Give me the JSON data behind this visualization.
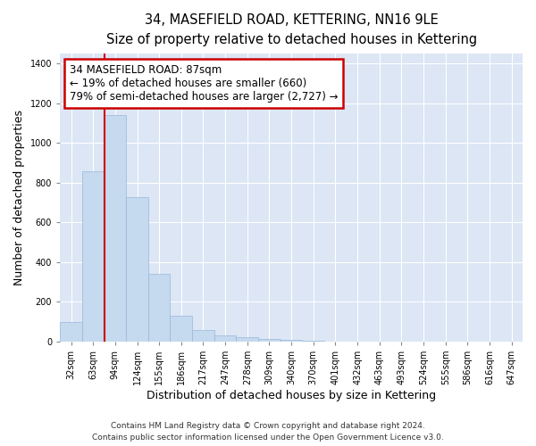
{
  "title_line1": "34, MASEFIELD ROAD, KETTERING, NN16 9LE",
  "title_line2": "Size of property relative to detached houses in Kettering",
  "xlabel": "Distribution of detached houses by size in Kettering",
  "ylabel": "Number of detached properties",
  "categories": [
    "32sqm",
    "63sqm",
    "94sqm",
    "124sqm",
    "155sqm",
    "186sqm",
    "217sqm",
    "247sqm",
    "278sqm",
    "309sqm",
    "340sqm",
    "370sqm",
    "401sqm",
    "432sqm",
    "463sqm",
    "493sqm",
    "524sqm",
    "555sqm",
    "586sqm",
    "616sqm",
    "647sqm"
  ],
  "values": [
    100,
    860,
    1140,
    730,
    340,
    130,
    60,
    30,
    20,
    13,
    8,
    5,
    0,
    0,
    0,
    0,
    0,
    0,
    0,
    0,
    0
  ],
  "bar_color": "#c5d9ef",
  "bar_edge_color": "#9ab8d8",
  "background_color": "#dce6f5",
  "grid_color": "#ffffff",
  "property_line_x": 2.0,
  "annotation_text_line1": "34 MASEFIELD ROAD: 87sqm",
  "annotation_text_line2": "← 19% of detached houses are smaller (660)",
  "annotation_text_line3": "79% of semi-detached houses are larger (2,727) →",
  "annotation_box_facecolor": "#ffffff",
  "annotation_box_edgecolor": "#cc0000",
  "red_line_color": "#cc0000",
  "ylim": [
    0,
    1450
  ],
  "yticks": [
    0,
    200,
    400,
    600,
    800,
    1000,
    1200,
    1400
  ],
  "fig_facecolor": "#ffffff",
  "footer_line1": "Contains HM Land Registry data © Crown copyright and database right 2024.",
  "footer_line2": "Contains public sector information licensed under the Open Government Licence v3.0.",
  "title_fontsize": 10.5,
  "subtitle_fontsize": 9.5,
  "axis_label_fontsize": 9,
  "tick_fontsize": 7,
  "annotation_fontsize": 8.5,
  "footer_fontsize": 6.5
}
